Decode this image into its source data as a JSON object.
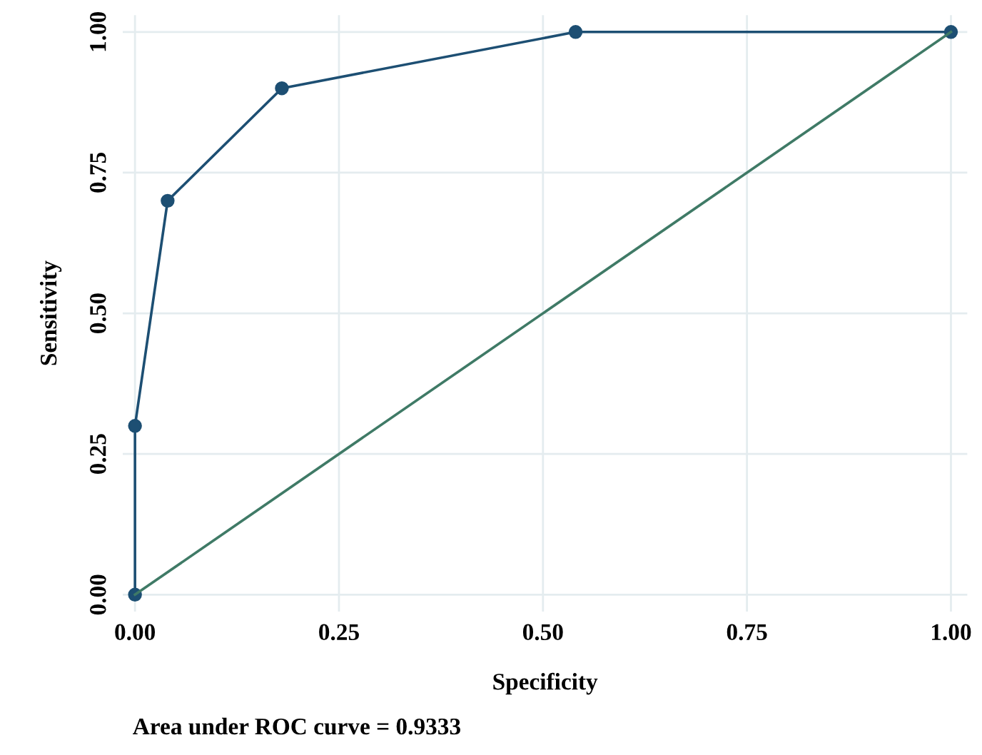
{
  "chart_data": {
    "type": "line",
    "xlabel": "Specificity",
    "ylabel": "Sensitivity",
    "annotations": [
      "Area under ROC curve = 0.9333"
    ],
    "series": [
      {
        "color": "#1d4f73",
        "x": [
          0,
          0,
          0.04,
          0.18,
          0.54,
          1
        ],
        "values": [
          0,
          0.3,
          0.7,
          0.9,
          1,
          1
        ],
        "marker": "circle"
      },
      {
        "color": "#3f7a66",
        "x": [
          0,
          1
        ],
        "values": [
          0,
          1
        ],
        "marker": "none"
      }
    ],
    "xlim": [
      -0.015,
      1.02
    ],
    "ylim": [
      -0.03,
      1.03
    ],
    "xticks": [
      {
        "value": 0,
        "label": "0.00"
      },
      {
        "value": 0.25,
        "label": "0.25"
      },
      {
        "value": 0.5,
        "label": "0.50"
      },
      {
        "value": 0.75,
        "label": "0.75"
      },
      {
        "value": 1,
        "label": "1.00"
      }
    ],
    "yticks": [
      {
        "value": 0,
        "label": "0.00"
      },
      {
        "value": 0.25,
        "label": "0.25"
      },
      {
        "value": 0.5,
        "label": "0.50"
      },
      {
        "value": 0.75,
        "label": "0.75"
      },
      {
        "value": 1,
        "label": "1.00"
      }
    ],
    "grid": true,
    "legend": false
  }
}
